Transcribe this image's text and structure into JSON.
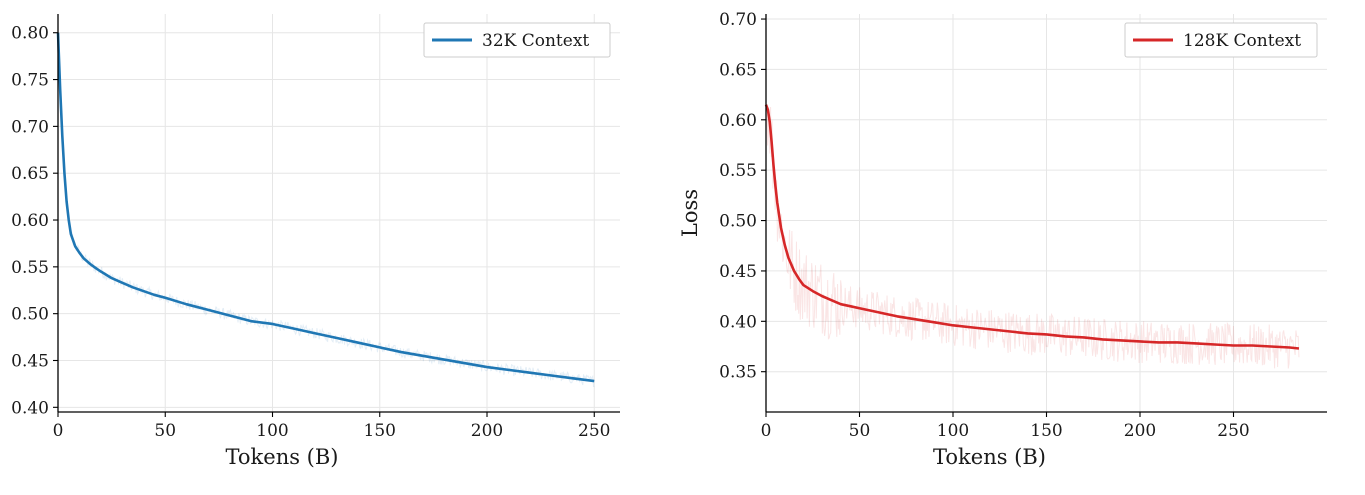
{
  "chart_data": [
    {
      "type": "line",
      "xlabel": "Tokens (B)",
      "ylabel": "",
      "xlim": [
        0,
        262
      ],
      "ylim": [
        0.395,
        0.82
      ],
      "xticks": [
        0,
        50,
        100,
        150,
        200,
        250
      ],
      "yticks": [
        0.4,
        0.45,
        0.5,
        0.55,
        0.6,
        0.65,
        0.7,
        0.75,
        0.8
      ],
      "grid": true,
      "legend_position": "top-right",
      "color": "#1f77b4",
      "series": [
        {
          "name": "32K Context",
          "x": [
            0,
            1,
            2,
            3,
            4,
            5,
            6,
            8,
            10,
            12,
            15,
            18,
            20,
            25,
            30,
            35,
            40,
            45,
            50,
            60,
            70,
            80,
            90,
            100,
            110,
            120,
            130,
            140,
            150,
            160,
            170,
            180,
            190,
            200,
            210,
            220,
            230,
            240,
            250
          ],
          "y": [
            0.8,
            0.74,
            0.69,
            0.65,
            0.62,
            0.6,
            0.585,
            0.572,
            0.565,
            0.559,
            0.553,
            0.548,
            0.545,
            0.538,
            0.533,
            0.528,
            0.524,
            0.52,
            0.517,
            0.51,
            0.504,
            0.498,
            0.492,
            0.489,
            0.484,
            0.479,
            0.474,
            0.469,
            0.464,
            0.459,
            0.455,
            0.451,
            0.447,
            0.443,
            0.44,
            0.437,
            0.434,
            0.431,
            0.428
          ]
        }
      ]
    },
    {
      "type": "line",
      "xlabel": "Tokens (B)",
      "ylabel": "Loss",
      "xlim": [
        0,
        300
      ],
      "ylim": [
        0.31,
        0.705
      ],
      "xticks": [
        0,
        50,
        100,
        150,
        200,
        250
      ],
      "yticks": [
        0.35,
        0.4,
        0.45,
        0.5,
        0.55,
        0.6,
        0.65,
        0.7
      ],
      "grid": true,
      "legend_position": "top-right",
      "color": "#d62728",
      "series": [
        {
          "name": "128K Context",
          "x": [
            0,
            1,
            2,
            3,
            4,
            5,
            6,
            8,
            10,
            12,
            15,
            18,
            20,
            25,
            30,
            35,
            40,
            45,
            50,
            60,
            70,
            80,
            90,
            100,
            110,
            120,
            130,
            140,
            150,
            160,
            170,
            180,
            190,
            200,
            210,
            220,
            230,
            240,
            250,
            260,
            270,
            280,
            285
          ],
          "y": [
            0.615,
            0.61,
            0.598,
            0.578,
            0.555,
            0.535,
            0.518,
            0.493,
            0.476,
            0.463,
            0.45,
            0.441,
            0.436,
            0.43,
            0.425,
            0.421,
            0.417,
            0.415,
            0.413,
            0.409,
            0.405,
            0.402,
            0.399,
            0.396,
            0.394,
            0.392,
            0.39,
            0.388,
            0.387,
            0.385,
            0.384,
            0.382,
            0.381,
            0.38,
            0.379,
            0.379,
            0.378,
            0.377,
            0.376,
            0.376,
            0.375,
            0.374,
            0.373
          ]
        }
      ]
    }
  ]
}
